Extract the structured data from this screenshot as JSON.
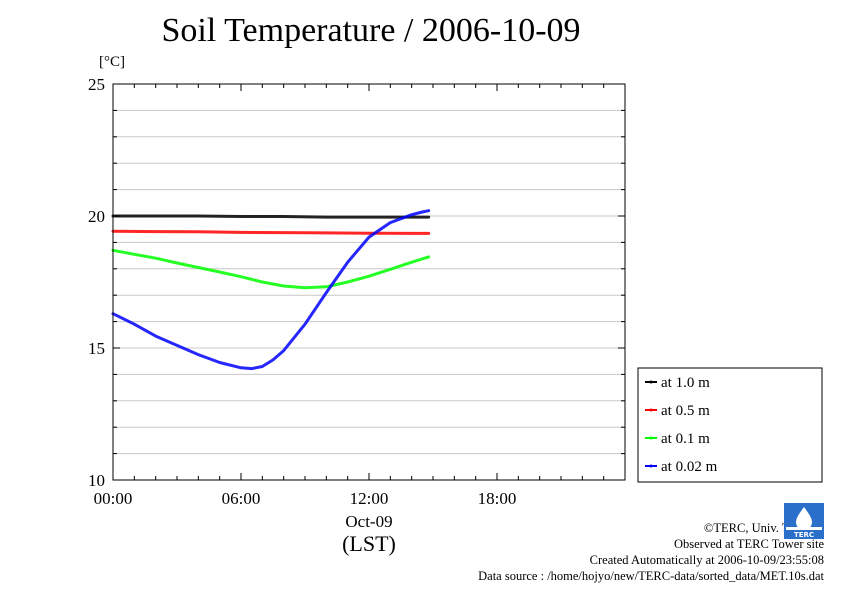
{
  "title": "Soil Temperature / 2006-10-09",
  "unit_label": "[°C]",
  "credits": {
    "copyright": "©TERC, Univ. Tsukuba",
    "site": "Observed at TERC Tower site",
    "created": "Created Automatically at 2006-10-09/23:55:08",
    "source": "Data source : /home/hojyo/new/TERC-data/sorted_data/MET.10s.dat"
  },
  "logo_text": "TERC",
  "colors": {
    "black": "#000000",
    "red": "#ff0000",
    "green": "#00ff00",
    "blue": "#0000ff",
    "grid": "#c8c8c8"
  },
  "chart_data": {
    "type": "line",
    "title": "Soil Temperature / 2006-10-09",
    "ylabel": "[°C]",
    "xlabel": "(LST)",
    "x_date_label": "Oct-09",
    "x_unit": "hours",
    "xlim": [
      0,
      24
    ],
    "ylim": [
      10,
      25
    ],
    "x_ticks": [
      0,
      6,
      12,
      18
    ],
    "x_tick_labels": [
      "00:00",
      "06:00",
      "12:00",
      "18:00"
    ],
    "y_ticks": [
      10,
      15,
      20,
      25
    ],
    "y_tick_labels": [
      "10",
      "15",
      "20",
      "25"
    ],
    "grid": true,
    "legend_position": "right-bottom",
    "series": [
      {
        "name": "at 1.0 m",
        "color": "#000000",
        "x": [
          0,
          2,
          4,
          6,
          8,
          10,
          12,
          14,
          14.8
        ],
        "y": [
          20.0,
          20.0,
          20.0,
          19.98,
          19.98,
          19.96,
          19.96,
          19.96,
          19.96
        ]
      },
      {
        "name": "at 0.5 m",
        "color": "#ff0000",
        "x": [
          0,
          2,
          4,
          6,
          8,
          10,
          12,
          14,
          14.8
        ],
        "y": [
          19.42,
          19.41,
          19.4,
          19.38,
          19.37,
          19.36,
          19.35,
          19.34,
          19.34
        ]
      },
      {
        "name": "at 0.1 m",
        "color": "#00ff00",
        "x": [
          0,
          1,
          2,
          3,
          4,
          5,
          6,
          7,
          8,
          9,
          10,
          11,
          12,
          13,
          14,
          14.8
        ],
        "y": [
          18.7,
          18.55,
          18.4,
          18.22,
          18.05,
          17.88,
          17.7,
          17.5,
          17.35,
          17.28,
          17.32,
          17.5,
          17.72,
          17.98,
          18.25,
          18.45
        ]
      },
      {
        "name": "at 0.02 m",
        "color": "#0000ff",
        "x": [
          0,
          1,
          2,
          3,
          4,
          5,
          6,
          6.5,
          7,
          7.5,
          8,
          9,
          10,
          11,
          12,
          13,
          14,
          14.5,
          14.8
        ],
        "y": [
          16.3,
          15.9,
          15.45,
          15.1,
          14.75,
          14.45,
          14.25,
          14.22,
          14.3,
          14.55,
          14.9,
          15.9,
          17.1,
          18.25,
          19.2,
          19.75,
          20.05,
          20.15,
          20.2
        ]
      }
    ]
  }
}
